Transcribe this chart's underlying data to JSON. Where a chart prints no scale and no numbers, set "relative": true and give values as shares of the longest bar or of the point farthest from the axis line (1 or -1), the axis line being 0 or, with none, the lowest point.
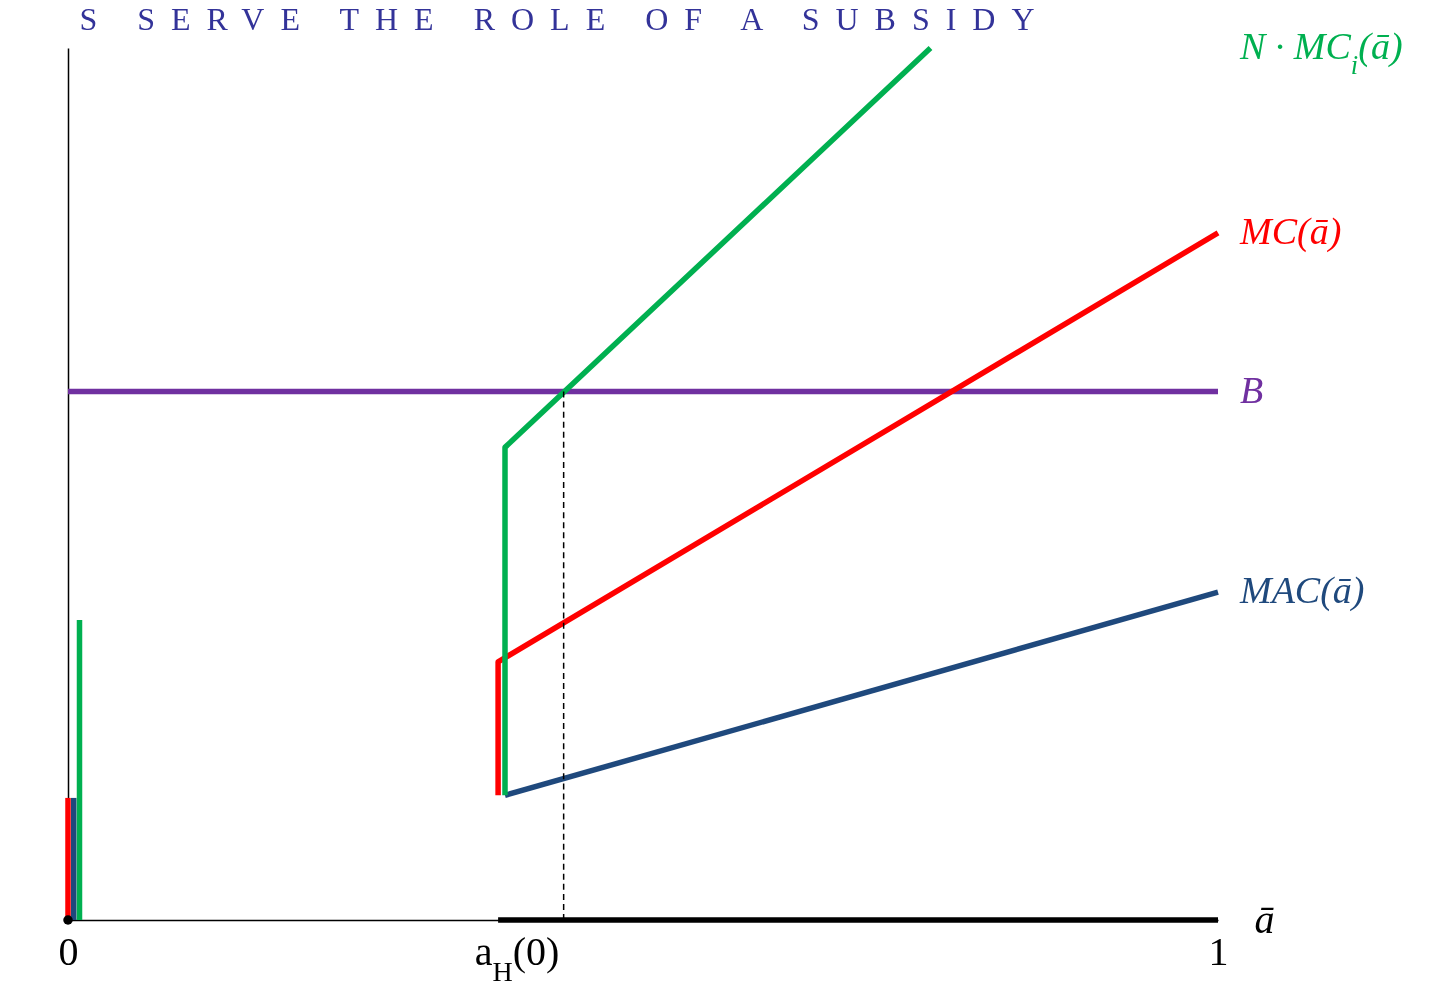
{
  "chart_data": {
    "type": "line",
    "title": "S SERVE THE ROLE OF A SUBSIDY",
    "xlabel": "ā",
    "relative": true,
    "xlim": [
      0,
      1
    ],
    "xticks": [
      0,
      {
        "value": 0.39,
        "label": "a$_{H}$(0)"
      },
      1
    ],
    "series": [
      {
        "name": "B",
        "color": "#7030a0",
        "x": [
          0,
          1
        ],
        "values": [
          0.606,
          0.606
        ]
      },
      {
        "name": "MAC(ā)",
        "color": "#1f497d",
        "x": [
          0.38,
          1
        ],
        "values": [
          0.143,
          0.376
        ]
      },
      {
        "name": "MC(ā)",
        "color": "#ff0000",
        "x": [
          0.374,
          0.374,
          1
        ],
        "values": [
          0.143,
          0.296,
          0.788
        ]
      },
      {
        "name": "N · MC$_{i}$(ā)",
        "color": "#00b050",
        "x": [
          0.38,
          0.38,
          0.75
        ],
        "values": [
          0.143,
          0.542,
          1
        ]
      },
      {
        "color": "#ff0000",
        "x": [
          0,
          0
        ],
        "values": [
          0,
          0.14
        ]
      },
      {
        "color": "#1f497d",
        "x": [
          0.005,
          0.005
        ],
        "values": [
          0,
          0.14
        ]
      },
      {
        "color": "#00b050",
        "x": [
          0.01,
          0.01
        ],
        "values": [
          0,
          0.344
        ]
      },
      {
        "color": "#000000",
        "x": [
          0.374,
          1
        ],
        "values": [
          0,
          0
        ]
      },
      {
        "color": "#000000",
        "x": [
          0.431,
          0.431
        ],
        "values": [
          0,
          0.606
        ],
        "line_style": "dashed"
      },
      {
        "type": "scatter",
        "color": "#000000",
        "x": [
          0
        ],
        "values": [
          0
        ],
        "marker": "circle"
      }
    ]
  }
}
